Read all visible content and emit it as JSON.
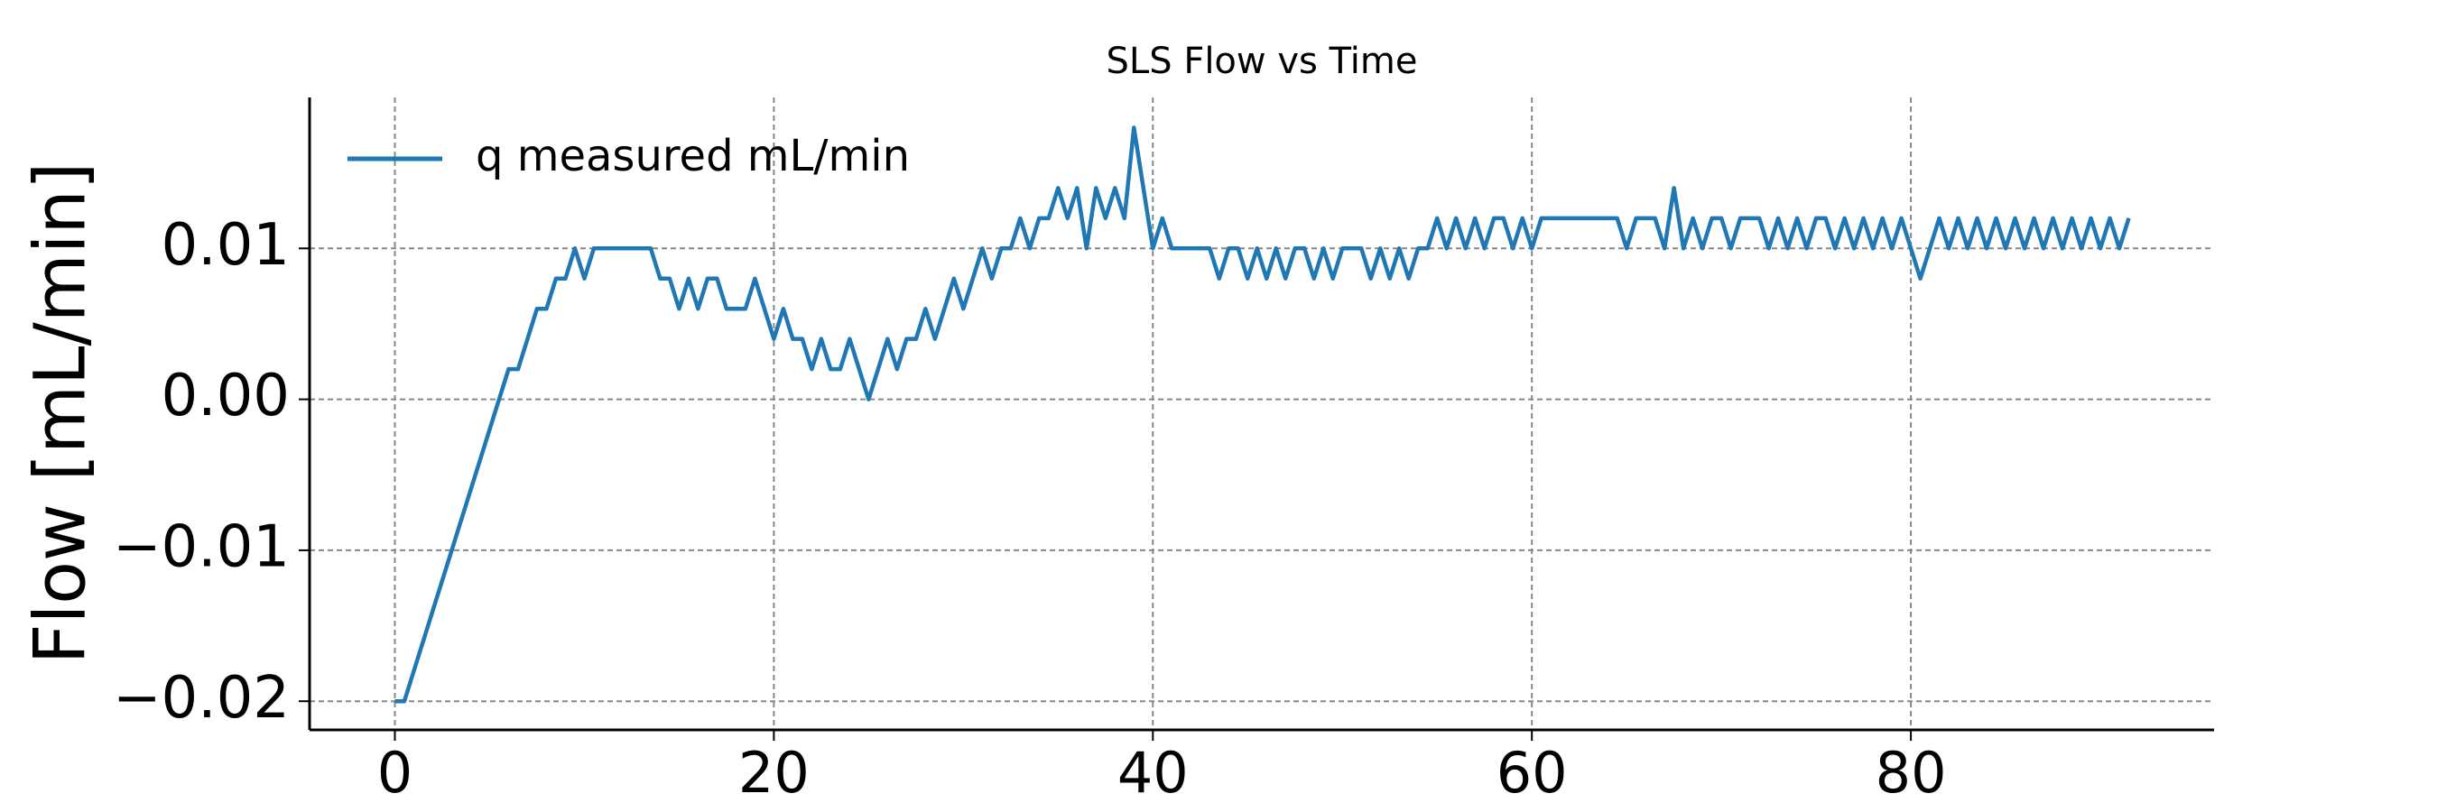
{
  "chart_data": {
    "type": "line",
    "title": "SLS Flow vs Time",
    "ylabel": "Flow [mL/min]",
    "x": [
      0,
      0.5,
      1,
      1.5,
      2,
      2.5,
      3,
      3.5,
      4,
      4.5,
      5,
      5.5,
      6,
      6.5,
      7,
      7.5,
      8,
      8.5,
      9,
      9.5,
      10,
      10.5,
      11,
      11.5,
      12,
      12.5,
      13,
      13.5,
      14,
      14.5,
      15,
      15.5,
      16,
      16.5,
      17,
      17.5,
      18,
      18.5,
      19,
      19.5,
      20,
      20.5,
      21,
      21.5,
      22,
      22.5,
      23,
      23.5,
      24,
      24.5,
      25,
      25.5,
      26,
      26.5,
      27,
      27.5,
      28,
      28.5,
      29,
      29.5,
      30,
      30.5,
      31,
      31.5,
      32,
      32.5,
      33,
      33.5,
      34,
      34.5,
      35,
      35.5,
      36,
      36.5,
      37,
      37.5,
      38,
      38.5,
      39,
      39.5,
      40,
      40.5,
      41,
      41.5,
      42,
      42.5,
      43,
      43.5,
      44,
      44.5,
      45,
      45.5,
      46,
      46.5,
      47,
      47.5,
      48,
      48.5,
      49,
      49.5,
      50,
      50.5,
      51,
      51.5,
      52,
      52.5,
      53,
      53.5,
      54,
      54.5,
      55,
      55.5,
      56,
      56.5,
      57,
      57.5,
      58,
      58.5,
      59,
      59.5,
      60,
      60.5,
      61,
      61.5,
      62,
      62.5,
      63,
      63.5,
      64,
      64.5,
      65,
      65.5,
      66,
      66.5,
      67,
      67.5,
      68,
      68.5,
      69,
      69.5,
      70,
      70.5,
      71,
      71.5,
      72,
      72.5,
      73,
      73.5,
      74,
      74.5,
      75,
      75.5,
      76,
      76.5,
      77,
      77.5,
      78,
      78.5,
      79,
      79.5,
      80,
      80.5,
      81,
      81.5,
      82,
      82.5,
      83,
      83.5,
      84,
      84.5,
      85,
      85.5,
      86,
      86.5,
      87,
      87.5,
      88,
      88.5,
      89,
      89.5,
      90,
      90.5,
      91,
      91.5
    ],
    "series": [
      {
        "name": "q measured mL/min",
        "color": "#1f77b4",
        "values": [
          -0.02,
          -0.02,
          -0.018,
          -0.016,
          -0.014,
          -0.012,
          -0.01,
          -0.008,
          -0.006,
          -0.004,
          -0.002,
          0,
          0.002,
          0.002,
          0.004,
          0.006,
          0.006,
          0.008,
          0.008,
          0.01,
          0.008,
          0.01,
          0.01,
          0.01,
          0.01,
          0.01,
          0.01,
          0.01,
          0.008,
          0.008,
          0.006,
          0.008,
          0.006,
          0.008,
          0.008,
          0.006,
          0.006,
          0.006,
          0.008,
          0.006,
          0.004,
          0.006,
          0.004,
          0.004,
          0.002,
          0.004,
          0.002,
          0.002,
          0.004,
          0.002,
          0,
          0.002,
          0.004,
          0.002,
          0.004,
          0.004,
          0.006,
          0.004,
          0.006,
          0.008,
          0.006,
          0.008,
          0.01,
          0.008,
          0.01,
          0.01,
          0.012,
          0.01,
          0.012,
          0.012,
          0.014,
          0.012,
          0.014,
          0.01,
          0.014,
          0.012,
          0.014,
          0.012,
          0.018,
          0.014,
          0.01,
          0.012,
          0.01,
          0.01,
          0.01,
          0.01,
          0.01,
          0.008,
          0.01,
          0.01,
          0.008,
          0.01,
          0.008,
          0.01,
          0.008,
          0.01,
          0.01,
          0.008,
          0.01,
          0.008,
          0.01,
          0.01,
          0.01,
          0.008,
          0.01,
          0.008,
          0.01,
          0.008,
          0.01,
          0.01,
          0.012,
          0.01,
          0.012,
          0.01,
          0.012,
          0.01,
          0.012,
          0.012,
          0.01,
          0.012,
          0.01,
          0.012,
          0.012,
          0.012,
          0.012,
          0.012,
          0.012,
          0.012,
          0.012,
          0.012,
          0.01,
          0.012,
          0.012,
          0.012,
          0.01,
          0.014,
          0.01,
          0.012,
          0.01,
          0.012,
          0.012,
          0.01,
          0.012,
          0.012,
          0.012,
          0.01,
          0.012,
          0.01,
          0.012,
          0.01,
          0.012,
          0.012,
          0.01,
          0.012,
          0.01,
          0.012,
          0.01,
          0.012,
          0.01,
          0.012,
          0.01,
          0.008,
          0.01,
          0.012,
          0.01,
          0.012,
          0.01,
          0.012,
          0.01,
          0.012,
          0.01,
          0.012,
          0.01,
          0.012,
          0.01,
          0.012,
          0.01,
          0.012,
          0.01,
          0.012,
          0.01,
          0.012,
          0.01,
          0.012
        ]
      }
    ],
    "xlim": [
      -4.5,
      96
    ],
    "xticks": [
      0,
      20,
      40,
      60,
      80
    ],
    "ylim": [
      -0.0219,
      0.02
    ],
    "yticks": [
      {
        "value": -0.02,
        "label": "−0.02"
      },
      {
        "value": -0.01,
        "label": "−0.01"
      },
      {
        "value": 0,
        "label": "0.00"
      },
      0.01
    ],
    "grid": true,
    "legend": "upper left"
  }
}
